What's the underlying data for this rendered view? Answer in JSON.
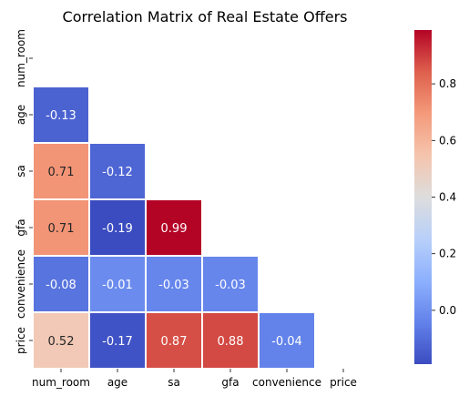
{
  "chart_data": {
    "type": "heatmap",
    "title": "Correlation Matrix of Real Estate Offers",
    "variables": [
      "num_room",
      "age",
      "sa",
      "gfa",
      "convenience",
      "price"
    ],
    "mask": "upper_triangle_including_diagonal",
    "matrix": [
      [
        null,
        null,
        null,
        null,
        null,
        null
      ],
      [
        -0.13,
        null,
        null,
        null,
        null,
        null
      ],
      [
        0.71,
        -0.12,
        null,
        null,
        null,
        null
      ],
      [
        0.71,
        -0.19,
        0.99,
        null,
        null,
        null
      ],
      [
        -0.08,
        -0.01,
        -0.03,
        -0.03,
        null,
        null
      ],
      [
        0.52,
        -0.17,
        0.87,
        0.88,
        -0.04,
        null
      ]
    ],
    "colormap": "coolwarm",
    "vmin": -0.19,
    "vmax": 0.99,
    "colorbar": {
      "ticks": [
        0.0,
        0.2,
        0.4,
        0.6,
        0.8
      ],
      "tick_labels": [
        "0.0",
        "0.2",
        "0.4",
        "0.6",
        "0.8"
      ],
      "placement": "right"
    },
    "xlabel": "",
    "ylabel": "",
    "annot": true,
    "annot_format": "0.00",
    "cell_separators": "white"
  }
}
